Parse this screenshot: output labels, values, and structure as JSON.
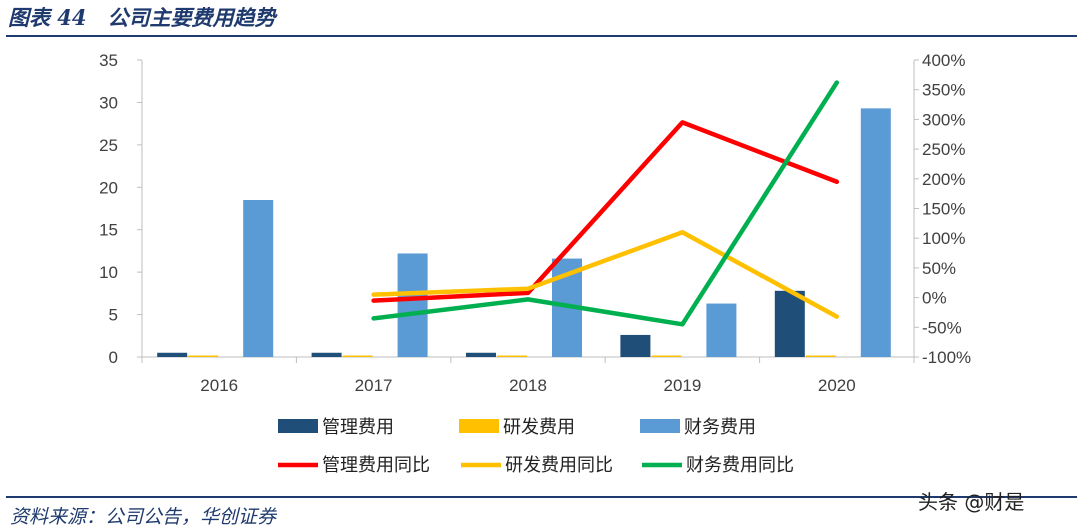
{
  "figure": {
    "title": "图表 44　公司主要费用趋势",
    "source": "资料来源：公司公告，华创证券",
    "watermark": "头条 @财是"
  },
  "chart_data": {
    "type": "bar",
    "title": "公司主要费用趋势",
    "categories": [
      "2016",
      "2017",
      "2018",
      "2019",
      "2020"
    ],
    "ylim": [
      0,
      35
    ],
    "yticks": [
      0,
      5,
      10,
      15,
      20,
      25,
      30,
      35
    ],
    "y2lim": [
      -100,
      400
    ],
    "y2ticks": [
      "-100%",
      "-50%",
      "0%",
      "50%",
      "100%",
      "150%",
      "200%",
      "250%",
      "300%",
      "350%",
      "400%"
    ],
    "bar_series": [
      {
        "name": "管理费用",
        "color": "#1f4e79",
        "values": [
          0.5,
          0.5,
          0.5,
          2.6,
          7.8
        ]
      },
      {
        "name": "研发费用",
        "color": "#ffc000",
        "values": [
          0.1,
          0.1,
          0.1,
          0.1,
          0.1
        ]
      },
      {
        "name": "财务费用",
        "color": "#5b9bd5",
        "values": [
          18.5,
          12.2,
          11.6,
          6.3,
          29.3
        ]
      }
    ],
    "line_series": [
      {
        "name": "管理费用同比",
        "color": "#ff0000",
        "axis": "right",
        "values": [
          null,
          -5,
          8,
          295,
          195
        ]
      },
      {
        "name": "研发费用同比",
        "color": "#ffc000",
        "axis": "right",
        "values": [
          null,
          5,
          15,
          110,
          -32
        ]
      },
      {
        "name": "财务费用同比",
        "color": "#00b050",
        "axis": "right",
        "values": [
          null,
          -35,
          -3,
          -45,
          362
        ]
      }
    ],
    "grid": false,
    "legend_position": "bottom"
  }
}
